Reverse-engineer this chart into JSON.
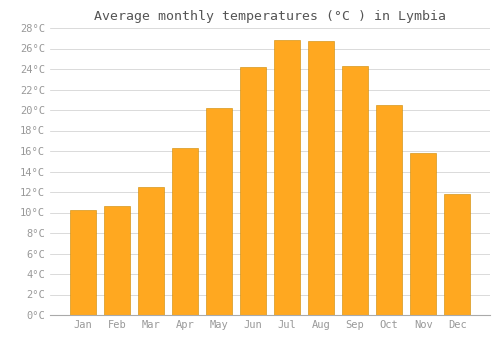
{
  "title": "Average monthly temperatures (°C ) in Lymbia",
  "months": [
    "Jan",
    "Feb",
    "Mar",
    "Apr",
    "May",
    "Jun",
    "Jul",
    "Aug",
    "Sep",
    "Oct",
    "Nov",
    "Dec"
  ],
  "values": [
    10.2,
    10.6,
    12.5,
    16.3,
    20.2,
    24.2,
    26.8,
    26.7,
    24.3,
    20.5,
    15.8,
    11.8
  ],
  "bar_color": "#FFA820",
  "bar_edge_color": "#CC8800",
  "background_color": "#FFFFFF",
  "grid_color": "#CCCCCC",
  "tick_label_color": "#999999",
  "title_color": "#555555",
  "ylim": [
    0,
    28
  ],
  "ytick_step": 2,
  "title_fontsize": 9.5,
  "tick_fontsize": 7.5,
  "bar_width": 0.75
}
